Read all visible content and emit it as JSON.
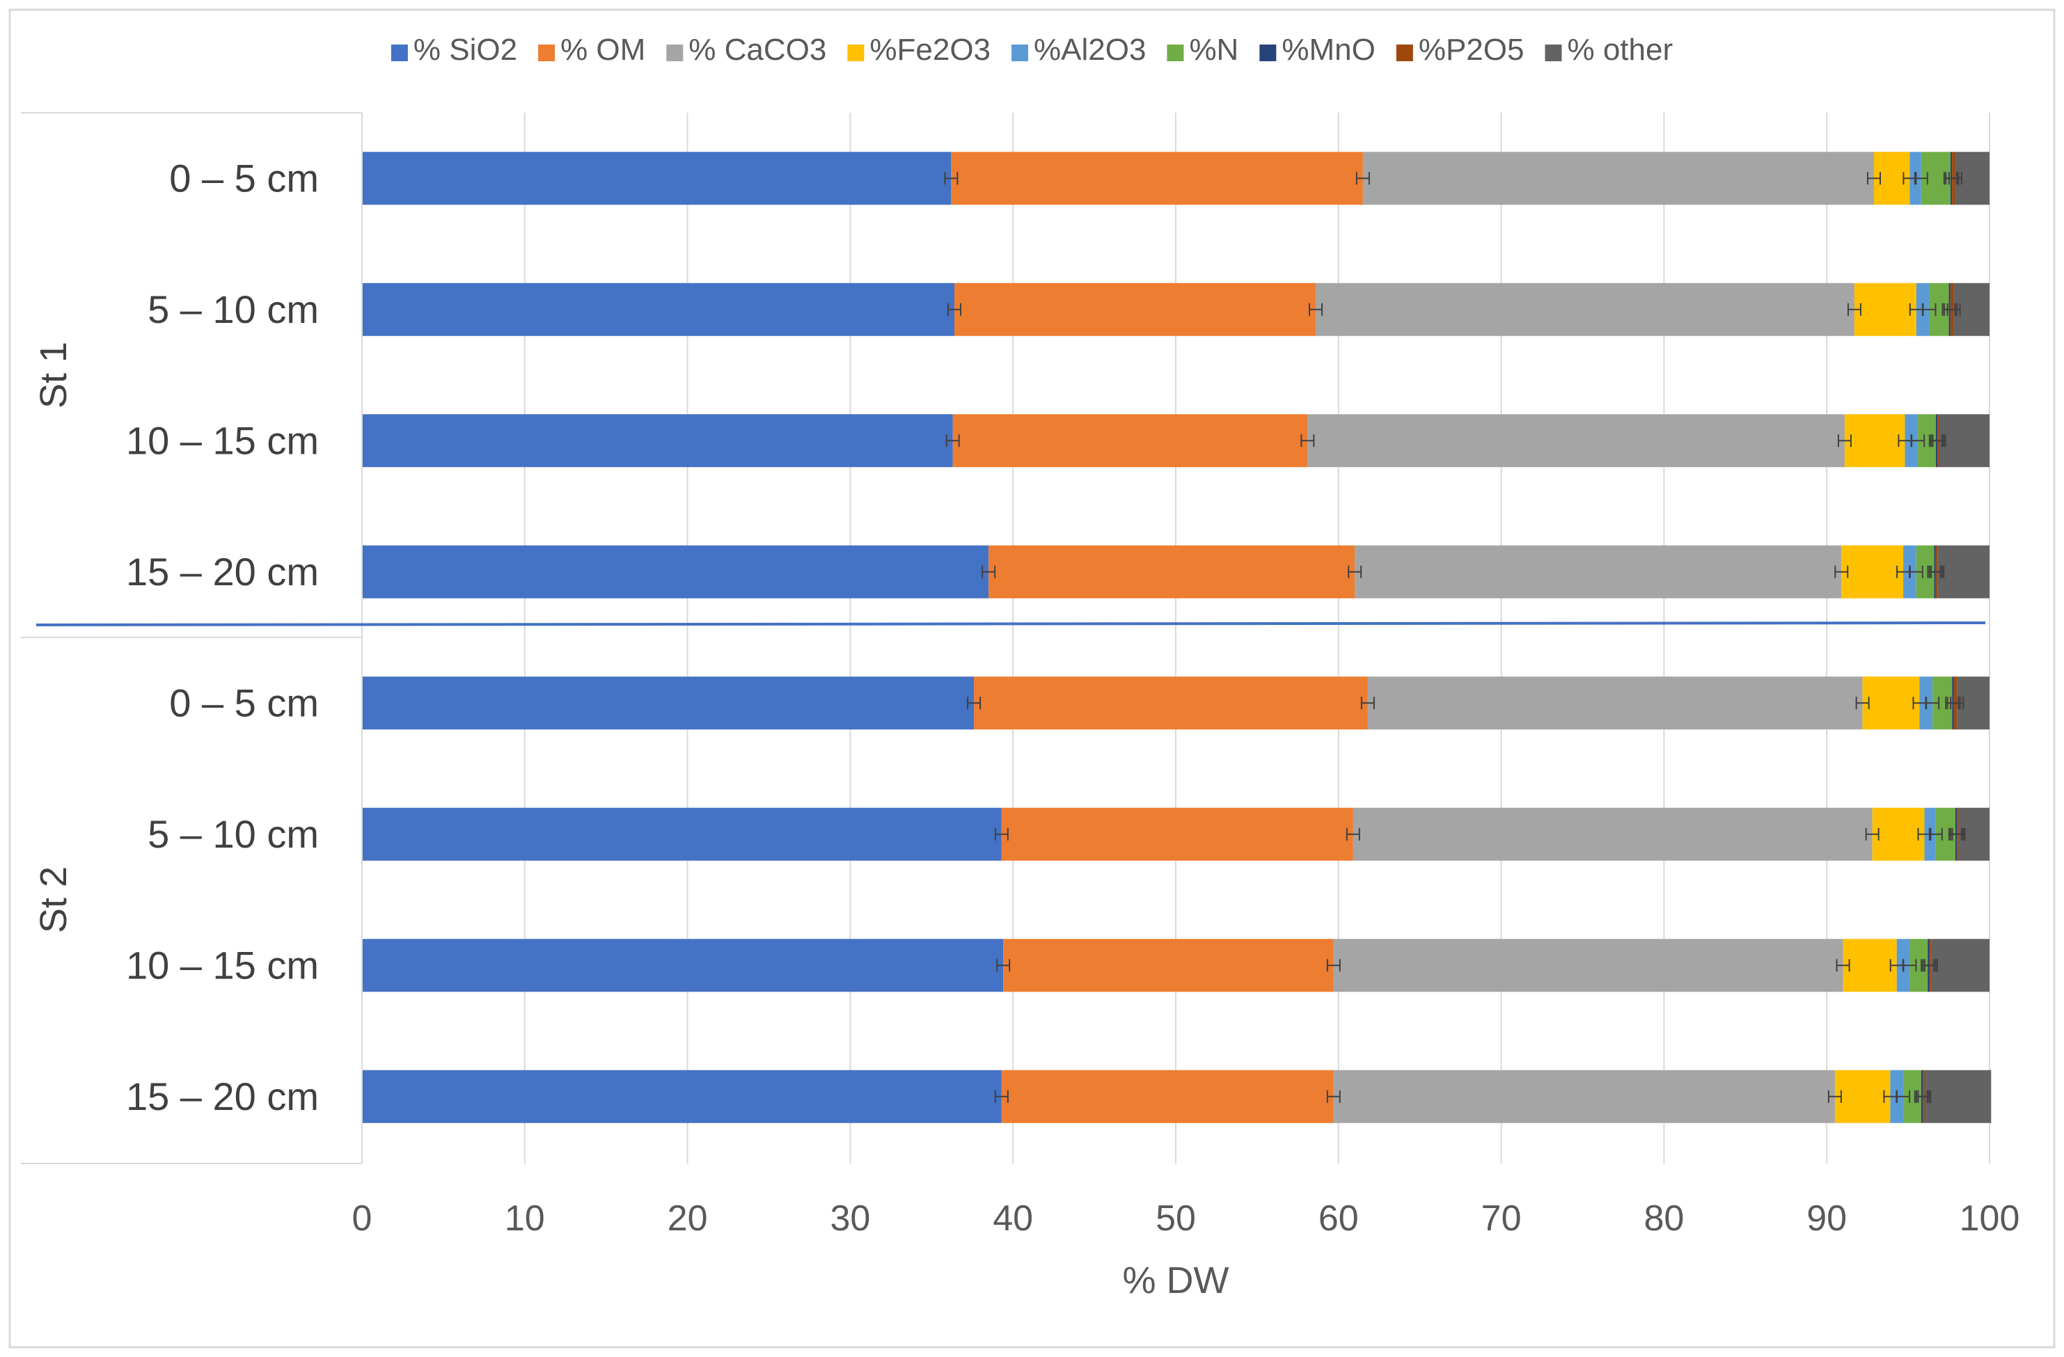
{
  "chart_data": {
    "type": "bar",
    "orientation": "horizontal",
    "stacked": true,
    "title": "",
    "xlabel": "% DW",
    "ylabel": "",
    "xlim": [
      0,
      100
    ],
    "x_ticks": [
      "0",
      "10",
      "20",
      "30",
      "40",
      "50",
      "60",
      "70",
      "80",
      "90",
      "100"
    ],
    "groups": [
      {
        "label": "St 1",
        "categories": [
          "0 – 5 cm",
          "5 – 10 cm",
          "10 – 15 cm",
          "15 – 20 cm"
        ]
      },
      {
        "label": "St 2",
        "categories": [
          "0 – 5 cm",
          "5 – 10 cm",
          "10 – 15 cm",
          "15 – 20 cm"
        ]
      }
    ],
    "series": [
      {
        "name": "% SiO2",
        "color": "#4472C4",
        "values": [
          36.2,
          36.4,
          36.3,
          38.5,
          37.6,
          39.3,
          39.4,
          39.3
        ]
      },
      {
        "name": "% OM",
        "color": "#ED7D31",
        "values": [
          25.3,
          22.2,
          21.8,
          22.5,
          24.2,
          21.6,
          20.3,
          20.4
        ]
      },
      {
        "name": "% CaCO3",
        "color": "#A5A5A5",
        "values": [
          31.4,
          33.1,
          33.0,
          29.9,
          30.4,
          31.9,
          31.3,
          30.8
        ]
      },
      {
        "name": "%Fe2O3",
        "color": "#FFC000",
        "values": [
          2.2,
          3.8,
          3.7,
          3.8,
          3.5,
          3.2,
          3.3,
          3.4
        ]
      },
      {
        "name": "%Al2O3",
        "color": "#5B9BD5",
        "values": [
          0.7,
          0.8,
          0.8,
          0.8,
          0.8,
          0.7,
          0.8,
          0.8
        ]
      },
      {
        "name": "%N",
        "color": "#70AD47",
        "values": [
          1.8,
          1.2,
          1.1,
          1.1,
          1.2,
          1.2,
          1.1,
          1.1
        ]
      },
      {
        "name": "%MnO",
        "color": "#264478",
        "values": [
          0.1,
          0.1,
          0.1,
          0.1,
          0.1,
          0.1,
          0.1,
          0.1
        ]
      },
      {
        "name": "%P2O5",
        "color": "#9E480E",
        "values": [
          0.2,
          0.2,
          0.1,
          0.1,
          0.2,
          0.1,
          0.1,
          0.1
        ]
      },
      {
        "name": "% other",
        "color": "#636363",
        "values": [
          2.1,
          2.2,
          3.1,
          3.2,
          2.0,
          1.9,
          3.6,
          4.1
        ]
      }
    ],
    "error_bars": true,
    "gridlines": true,
    "legend_position": "top"
  }
}
